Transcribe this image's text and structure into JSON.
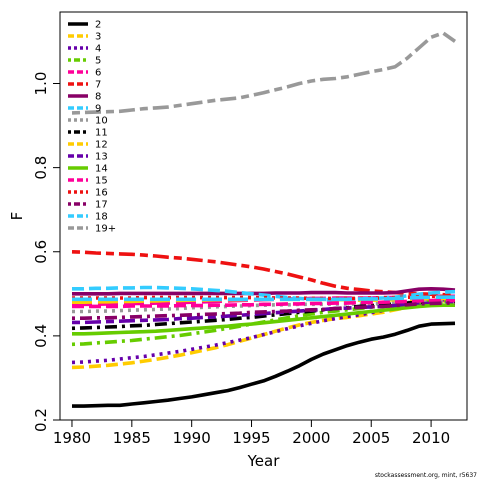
{
  "chart_data": {
    "type": "line",
    "title": "",
    "xlabel": "Year",
    "ylabel": "F",
    "xlim": [
      1979,
      2013
    ],
    "ylim": [
      0.2,
      1.17
    ],
    "x_ticks": [
      1980,
      1985,
      1990,
      1995,
      2000,
      2005,
      2010
    ],
    "y_ticks": [
      0.2,
      0.4,
      0.6,
      0.8,
      1.0
    ],
    "y_tick_labels": [
      "0.2",
      "0.4",
      "0.6",
      "0.8",
      "1.0"
    ],
    "grid": false,
    "legend_position": "top-left",
    "x": [
      1980,
      1981,
      1982,
      1983,
      1984,
      1985,
      1986,
      1987,
      1988,
      1989,
      1990,
      1991,
      1992,
      1993,
      1994,
      1995,
      1996,
      1997,
      1998,
      1999,
      2000,
      2001,
      2002,
      2003,
      2004,
      2005,
      2006,
      2007,
      2008,
      2009,
      2010,
      2011,
      2012
    ],
    "series": [
      {
        "name": "2",
        "color": "#000000",
        "dash": "solid",
        "values": [
          0.233,
          0.233,
          0.234,
          0.235,
          0.235,
          0.238,
          0.241,
          0.244,
          0.247,
          0.251,
          0.255,
          0.26,
          0.265,
          0.27,
          0.277,
          0.285,
          0.293,
          0.304,
          0.316,
          0.329,
          0.344,
          0.357,
          0.367,
          0.377,
          0.385,
          0.392,
          0.397,
          0.404,
          0.413,
          0.423,
          0.428,
          0.429,
          0.43
        ]
      },
      {
        "name": "3",
        "color": "#FFCC00",
        "dash": "dash",
        "values": [
          0.325,
          0.326,
          0.328,
          0.33,
          0.333,
          0.336,
          0.34,
          0.344,
          0.349,
          0.354,
          0.36,
          0.366,
          0.372,
          0.379,
          0.387,
          0.395,
          0.403,
          0.411,
          0.419,
          0.426,
          0.432,
          0.437,
          0.441,
          0.444,
          0.448,
          0.452,
          0.456,
          0.462,
          0.468,
          0.475,
          0.48,
          0.483,
          0.485
        ]
      },
      {
        "name": "4",
        "color": "#6600AA",
        "dash": "dot",
        "values": [
          0.337,
          0.338,
          0.34,
          0.342,
          0.345,
          0.348,
          0.351,
          0.355,
          0.359,
          0.363,
          0.368,
          0.373,
          0.378,
          0.384,
          0.39,
          0.396,
          0.403,
          0.41,
          0.417,
          0.424,
          0.43,
          0.436,
          0.441,
          0.446,
          0.45,
          0.455,
          0.46,
          0.466,
          0.472,
          0.478,
          0.483,
          0.486,
          0.487
        ]
      },
      {
        "name": "5",
        "color": "#66CC00",
        "dash": "dashdot",
        "values": [
          0.38,
          0.381,
          0.383,
          0.385,
          0.387,
          0.389,
          0.392,
          0.395,
          0.398,
          0.401,
          0.405,
          0.409,
          0.413,
          0.418,
          0.423,
          0.428,
          0.433,
          0.438,
          0.443,
          0.448,
          0.452,
          0.456,
          0.459,
          0.462,
          0.465,
          0.468,
          0.471,
          0.474,
          0.477,
          0.48,
          0.482,
          0.483,
          0.484
        ]
      },
      {
        "name": "6",
        "color": "#FF0099",
        "dash": "longdash",
        "values": [
          0.475,
          0.475,
          0.475,
          0.476,
          0.476,
          0.477,
          0.477,
          0.478,
          0.478,
          0.479,
          0.48,
          0.481,
          0.482,
          0.483,
          0.484,
          0.485,
          0.486,
          0.487,
          0.488,
          0.488,
          0.489,
          0.489,
          0.49,
          0.49,
          0.49,
          0.49,
          0.491,
          0.491,
          0.492,
          0.493,
          0.494,
          0.494,
          0.494
        ]
      },
      {
        "name": "7",
        "color": "#EE1111",
        "dash": "twodash",
        "values": [
          0.6,
          0.599,
          0.597,
          0.596,
          0.595,
          0.594,
          0.592,
          0.59,
          0.587,
          0.585,
          0.582,
          0.579,
          0.576,
          0.572,
          0.568,
          0.564,
          0.559,
          0.553,
          0.547,
          0.54,
          0.533,
          0.525,
          0.518,
          0.513,
          0.51,
          0.507,
          0.505,
          0.503,
          0.501,
          0.5,
          0.499,
          0.498,
          0.497
        ]
      },
      {
        "name": "8",
        "color": "#880066",
        "dash": "solid",
        "values": [
          0.5,
          0.5,
          0.5,
          0.5,
          0.501,
          0.501,
          0.501,
          0.501,
          0.501,
          0.501,
          0.501,
          0.501,
          0.501,
          0.501,
          0.501,
          0.501,
          0.501,
          0.502,
          0.502,
          0.502,
          0.503,
          0.503,
          0.503,
          0.502,
          0.502,
          0.502,
          0.502,
          0.503,
          0.507,
          0.511,
          0.512,
          0.511,
          0.509
        ]
      },
      {
        "name": "9",
        "color": "#33CCFF",
        "dash": "dash",
        "values": [
          0.512,
          0.512,
          0.513,
          0.513,
          0.514,
          0.514,
          0.515,
          0.515,
          0.514,
          0.513,
          0.512,
          0.51,
          0.508,
          0.506,
          0.503,
          0.5,
          0.497,
          0.494,
          0.491,
          0.489,
          0.487,
          0.486,
          0.486,
          0.487,
          0.488,
          0.489,
          0.49,
          0.492,
          0.495,
          0.499,
          0.502,
          0.504,
          0.505
        ]
      },
      {
        "name": "10",
        "color": "#999999",
        "dash": "dot",
        "values": [
          0.458,
          0.458,
          0.459,
          0.459,
          0.46,
          0.461,
          0.462,
          0.463,
          0.464,
          0.465,
          0.467,
          0.468,
          0.469,
          0.47,
          0.471,
          0.472,
          0.473,
          0.474,
          0.474,
          0.475,
          0.475,
          0.475,
          0.476,
          0.476,
          0.476,
          0.476,
          0.477,
          0.478,
          0.479,
          0.48,
          0.481,
          0.481,
          0.481
        ]
      },
      {
        "name": "11",
        "color": "#000000",
        "dash": "dashdot",
        "values": [
          0.418,
          0.419,
          0.42,
          0.421,
          0.422,
          0.424,
          0.425,
          0.427,
          0.429,
          0.431,
          0.433,
          0.435,
          0.437,
          0.439,
          0.442,
          0.444,
          0.447,
          0.45,
          0.453,
          0.456,
          0.459,
          0.462,
          0.465,
          0.467,
          0.47,
          0.472,
          0.474,
          0.476,
          0.478,
          0.48,
          0.481,
          0.482,
          0.482
        ]
      },
      {
        "name": "12",
        "color": "#FFCC00",
        "dash": "longdash",
        "values": [
          0.48,
          0.48,
          0.481,
          0.481,
          0.482,
          0.482,
          0.483,
          0.483,
          0.484,
          0.484,
          0.485,
          0.485,
          0.486,
          0.486,
          0.486,
          0.487,
          0.487,
          0.487,
          0.487,
          0.487,
          0.487,
          0.487,
          0.486,
          0.486,
          0.485,
          0.485,
          0.485,
          0.486,
          0.487,
          0.488,
          0.489,
          0.489,
          0.489
        ]
      },
      {
        "name": "13",
        "color": "#6600AA",
        "dash": "twodash",
        "values": [
          0.432,
          0.432,
          0.433,
          0.434,
          0.435,
          0.436,
          0.437,
          0.438,
          0.439,
          0.441,
          0.442,
          0.444,
          0.445,
          0.447,
          0.449,
          0.451,
          0.453,
          0.455,
          0.457,
          0.459,
          0.461,
          0.463,
          0.465,
          0.466,
          0.468,
          0.469,
          0.47,
          0.472,
          0.474,
          0.476,
          0.477,
          0.478,
          0.478
        ]
      },
      {
        "name": "14",
        "color": "#66CC00",
        "dash": "solid",
        "values": [
          0.405,
          0.405,
          0.406,
          0.407,
          0.408,
          0.409,
          0.41,
          0.411,
          0.413,
          0.415,
          0.417,
          0.419,
          0.421,
          0.423,
          0.426,
          0.428,
          0.431,
          0.434,
          0.437,
          0.44,
          0.443,
          0.446,
          0.449,
          0.452,
          0.455,
          0.458,
          0.461,
          0.464,
          0.467,
          0.47,
          0.472,
          0.473,
          0.473
        ]
      },
      {
        "name": "15",
        "color": "#FF0099",
        "dash": "dash",
        "values": [
          0.47,
          0.47,
          0.47,
          0.47,
          0.47,
          0.471,
          0.471,
          0.471,
          0.471,
          0.472,
          0.472,
          0.472,
          0.473,
          0.473,
          0.474,
          0.474,
          0.475,
          0.475,
          0.476,
          0.476,
          0.477,
          0.477,
          0.478,
          0.478,
          0.479,
          0.479,
          0.48,
          0.481,
          0.482,
          0.483,
          0.484,
          0.484,
          0.484
        ]
      },
      {
        "name": "16",
        "color": "#EE1111",
        "dash": "dot",
        "values": [
          0.49,
          0.49,
          0.49,
          0.49,
          0.49,
          0.49,
          0.491,
          0.491,
          0.491,
          0.491,
          0.491,
          0.491,
          0.491,
          0.491,
          0.491,
          0.491,
          0.491,
          0.49,
          0.49,
          0.49,
          0.489,
          0.489,
          0.489,
          0.489,
          0.489,
          0.49,
          0.49,
          0.491,
          0.492,
          0.493,
          0.494,
          0.494,
          0.494
        ]
      },
      {
        "name": "17",
        "color": "#880066",
        "dash": "dashdot",
        "values": [
          0.442,
          0.442,
          0.443,
          0.443,
          0.444,
          0.445,
          0.446,
          0.447,
          0.448,
          0.449,
          0.45,
          0.451,
          0.452,
          0.453,
          0.454,
          0.456,
          0.457,
          0.458,
          0.459,
          0.461,
          0.462,
          0.463,
          0.465,
          0.466,
          0.468,
          0.469,
          0.47,
          0.472,
          0.474,
          0.476,
          0.477,
          0.478,
          0.478
        ]
      },
      {
        "name": "18",
        "color": "#33CCFF",
        "dash": "longdash",
        "values": [
          0.487,
          0.487,
          0.487,
          0.487,
          0.487,
          0.487,
          0.487,
          0.487,
          0.487,
          0.487,
          0.487,
          0.487,
          0.487,
          0.487,
          0.487,
          0.487,
          0.487,
          0.487,
          0.487,
          0.487,
          0.487,
          0.487,
          0.487,
          0.487,
          0.488,
          0.488,
          0.488,
          0.489,
          0.49,
          0.491,
          0.492,
          0.492,
          0.492
        ]
      },
      {
        "name": "19+",
        "color": "#999999",
        "dash": "twodash",
        "values": [
          0.93,
          0.931,
          0.932,
          0.933,
          0.934,
          0.937,
          0.94,
          0.942,
          0.944,
          0.948,
          0.952,
          0.956,
          0.96,
          0.963,
          0.966,
          0.972,
          0.978,
          0.985,
          0.992,
          1.0,
          1.006,
          1.01,
          1.012,
          1.016,
          1.022,
          1.028,
          1.033,
          1.04,
          1.06,
          1.085,
          1.11,
          1.12,
          1.1
        ]
      }
    ],
    "footnote": "stockassessment.org, mint, r5637"
  }
}
